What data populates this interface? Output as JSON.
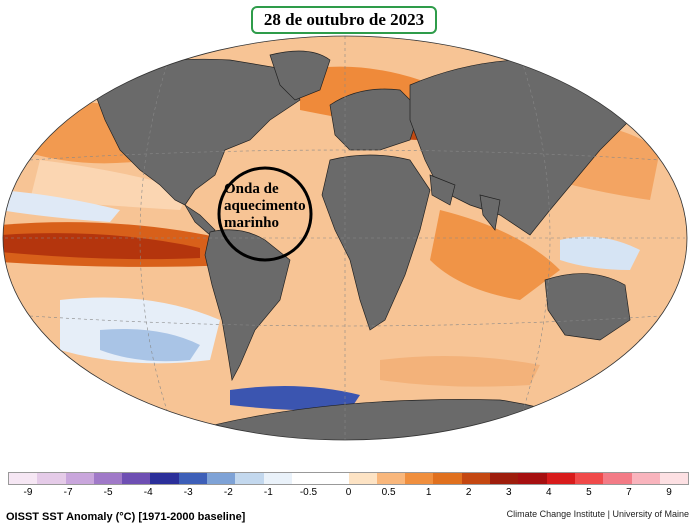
{
  "map": {
    "date_title": "28 de outubro de 2023",
    "annotation": [
      "Onda de",
      "aquecimento",
      "marinho"
    ]
  },
  "colorbar": {
    "ticks": [
      "-9",
      "-7",
      "-5",
      "-4",
      "-3",
      "-2",
      "-1",
      "-0.5",
      "0",
      "0.5",
      "1",
      "2",
      "3",
      "4",
      "5",
      "7",
      "9"
    ],
    "colors": [
      "#f6e7f4",
      "#e5cbe8",
      "#c9a6dc",
      "#a079c8",
      "#6e4fb3",
      "#2b2f9a",
      "#3d5fb8",
      "#7ea2d6",
      "#c3d8ee",
      "#eaf2fa",
      "#ffffff",
      "#ffffff",
      "#fde3c4",
      "#f9b77c",
      "#f08f3e",
      "#e0701e",
      "#c44711",
      "#9e1d0c",
      "#a60f10",
      "#d81b1b",
      "#f04a4a",
      "#f37b86",
      "#f9b4bd",
      "#fde0e3"
    ]
  },
  "caption": "OISST SST Anomaly (°C) [1971-2000 baseline]",
  "credit": "Climate Change Institute | University of Maine"
}
